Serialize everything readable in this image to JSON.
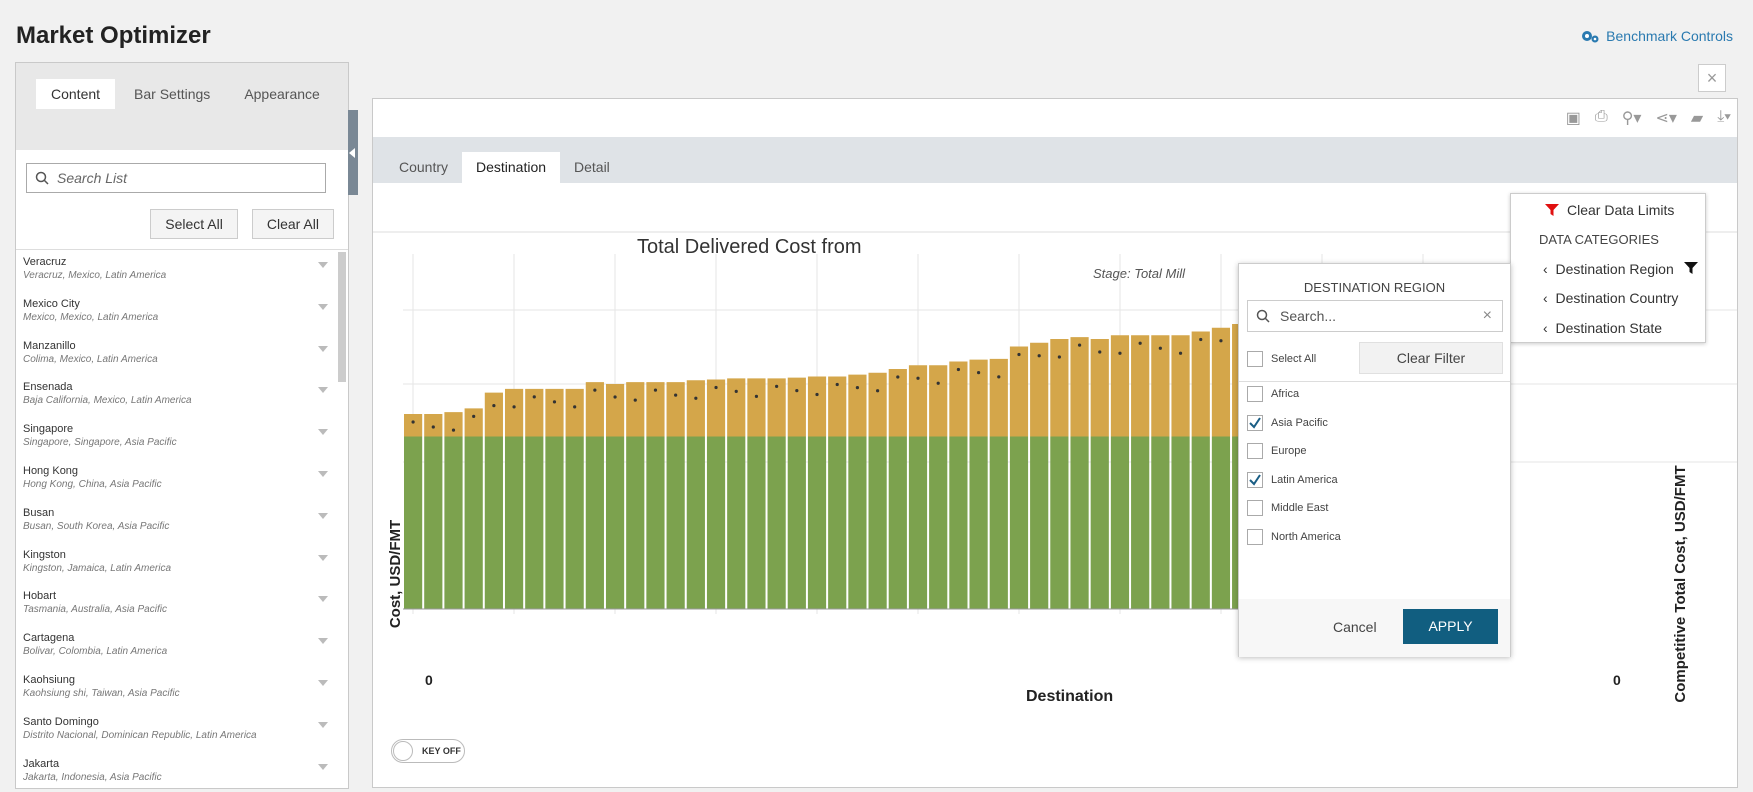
{
  "app": {
    "title": "Market Optimizer",
    "benchmark_label": "Benchmark Controls"
  },
  "left_panel": {
    "tabs": [
      "Content",
      "Bar Settings",
      "Appearance"
    ],
    "search_placeholder": "Search List",
    "select_all": "Select All",
    "clear_all": "Clear All",
    "items": [
      {
        "name": "Veracruz",
        "sub": "Veracruz, Mexico, Latin America"
      },
      {
        "name": "Mexico City",
        "sub": "Mexico, Mexico, Latin America"
      },
      {
        "name": "Manzanillo",
        "sub": "Colima, Mexico, Latin America"
      },
      {
        "name": "Ensenada",
        "sub": "Baja California, Mexico, Latin America"
      },
      {
        "name": "Singapore",
        "sub": "Singapore, Singapore, Asia Pacific"
      },
      {
        "name": "Hong Kong",
        "sub": "Hong Kong, China, Asia Pacific"
      },
      {
        "name": "Busan",
        "sub": "Busan, South Korea, Asia Pacific"
      },
      {
        "name": "Kingston",
        "sub": "Kingston, Jamaica, Latin America"
      },
      {
        "name": "Hobart",
        "sub": "Tasmania, Australia, Asia Pacific"
      },
      {
        "name": "Cartagena",
        "sub": "Bolivar, Colombia, Latin America"
      },
      {
        "name": "Kaohsiung",
        "sub": "Kaohsiung shi, Taiwan, Asia Pacific"
      },
      {
        "name": "Santo Domingo",
        "sub": "Distrito Nacional, Dominican Republic, Latin America"
      },
      {
        "name": "Jakarta",
        "sub": "Jakarta, Indonesia, Asia Pacific"
      }
    ]
  },
  "main_tabs": [
    "Country",
    "Destination",
    "Detail"
  ],
  "data_limits": {
    "clear_label": "Clear Data Limits",
    "categories_header": "DATA CATEGORIES",
    "items": [
      "Destination Region",
      "Destination Country",
      "Destination State"
    ]
  },
  "region_filter": {
    "header": "DESTINATION REGION",
    "search_placeholder": "Search...",
    "select_all": "Select All",
    "clear_filter": "Clear Filter",
    "options": [
      {
        "label": "Africa",
        "checked": false
      },
      {
        "label": "Asia Pacific",
        "checked": true
      },
      {
        "label": "Europe",
        "checked": false
      },
      {
        "label": "Latin America",
        "checked": true
      },
      {
        "label": "Middle East",
        "checked": false
      },
      {
        "label": "North America",
        "checked": false
      }
    ],
    "cancel": "Cancel",
    "apply": "APPLY"
  },
  "key_toggle": "KEY OFF",
  "chart_data": {
    "type": "bar",
    "title": "Total Delivered Cost from",
    "subtitle": "Stage: Total Mill",
    "xlabel": "Destination",
    "ylabel": "Cost, USD/FMT",
    "y2label": "Competitive Total Cost, USD/FMT",
    "y_tick_left": "0",
    "y_tick_right": "0",
    "colors": {
      "base": "#7ca24e",
      "top": "#d4a64a",
      "marker": "#333333"
    },
    "stack_fraction": {
      "base": 0.46,
      "totals": [
        0.52,
        0.52,
        0.525,
        0.535,
        0.577,
        0.587,
        0.587,
        0.587,
        0.587,
        0.605,
        0.6,
        0.605,
        0.605,
        0.605,
        0.61,
        0.612,
        0.615,
        0.615,
        0.615,
        0.617,
        0.62,
        0.62,
        0.625,
        0.63,
        0.64,
        0.65,
        0.65,
        0.66,
        0.665,
        0.667,
        0.7,
        0.71,
        0.72,
        0.725,
        0.72,
        0.73,
        0.73,
        0.73,
        0.73,
        0.74,
        0.75,
        0.76,
        0.77,
        0.78,
        0.8,
        0.82,
        0.84,
        0.86,
        0.87,
        0.88,
        0.9
      ]
    }
  }
}
